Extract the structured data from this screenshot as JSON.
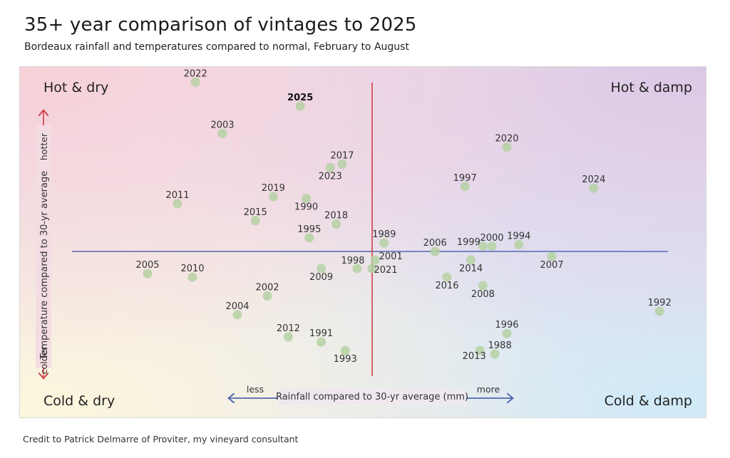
{
  "title": "35+ year comparison of vintages to 2025",
  "subtitle": "Bordeaux rainfall and temperatures compared to normal, February to August",
  "credit": "Credit to Patrick Delmarre of Proviter, my vineyard consultant",
  "chart_data": {
    "type": "scatter",
    "title": "35+ year comparison of vintages to 2025",
    "xlabel": "Rainfall compared to 30-yr average (mm)",
    "ylabel": "Temperature compared to 30-yr average",
    "x_arrow_labels": {
      "low": "less",
      "high": "more"
    },
    "y_arrow_labels": {
      "high": "hotter",
      "low": "colder"
    },
    "quadrants": {
      "top_left": "Hot & dry",
      "top_right": "Hot & damp",
      "bottom_left": "Cold & dry",
      "bottom_right": "Cold & damp"
    },
    "xlim": [
      -100,
      100
    ],
    "ylim": [
      -100,
      100
    ],
    "scale_note_units": "relative (no ticks printed)",
    "grid": false,
    "colors": {
      "point": "#b5d1a3",
      "x_axis_line": "#5068b0",
      "y_axis_line": "#d04048",
      "hotter_arrow": "#d04048",
      "rainfall_arrow": "#5068b0"
    },
    "highlight": "2025",
    "points": [
      {
        "label": "2022",
        "x": -59,
        "y": 99
      },
      {
        "label": "2025",
        "x": -24,
        "y": 85
      },
      {
        "label": "2003",
        "x": -50,
        "y": 69
      },
      {
        "label": "2017",
        "x": -10,
        "y": 51
      },
      {
        "label": "2023",
        "x": -14,
        "y": 49
      },
      {
        "label": "2019",
        "x": -33,
        "y": 32
      },
      {
        "label": "1990",
        "x": -22,
        "y": 31
      },
      {
        "label": "2011",
        "x": -65,
        "y": 28
      },
      {
        "label": "2015",
        "x": -39,
        "y": 18
      },
      {
        "label": "2018",
        "x": -12,
        "y": 16
      },
      {
        "label": "1995",
        "x": -21,
        "y": 8
      },
      {
        "label": "1989",
        "x": 4,
        "y": 5
      },
      {
        "label": "2005",
        "x": -75,
        "y": -13
      },
      {
        "label": "2010",
        "x": -60,
        "y": -15
      },
      {
        "label": "2009",
        "x": -17,
        "y": -10
      },
      {
        "label": "1998",
        "x": -5,
        "y": -10
      },
      {
        "label": "2001",
        "x": 1,
        "y": -5
      },
      {
        "label": "2021",
        "x": 0,
        "y": -10
      },
      {
        "label": "2002",
        "x": -35,
        "y": -26
      },
      {
        "label": "2004",
        "x": -45,
        "y": -37
      },
      {
        "label": "2012",
        "x": -28,
        "y": -50
      },
      {
        "label": "1991",
        "x": -17,
        "y": -53
      },
      {
        "label": "1993",
        "x": -9,
        "y": -58
      },
      {
        "label": "2020",
        "x": 45,
        "y": 61
      },
      {
        "label": "1997",
        "x": 31,
        "y": 38
      },
      {
        "label": "2024",
        "x": 74,
        "y": 37
      },
      {
        "label": "2006",
        "x": 21,
        "y": 0
      },
      {
        "label": "1999",
        "x": 37,
        "y": 3
      },
      {
        "label": "2000",
        "x": 40,
        "y": 3
      },
      {
        "label": "1994",
        "x": 49,
        "y": 4
      },
      {
        "label": "2007",
        "x": 60,
        "y": -3
      },
      {
        "label": "2014",
        "x": 33,
        "y": -5
      },
      {
        "label": "2016",
        "x": 25,
        "y": -15
      },
      {
        "label": "2008",
        "x": 37,
        "y": -20
      },
      {
        "label": "1992",
        "x": 96,
        "y": -35
      },
      {
        "label": "1996",
        "x": 45,
        "y": -48
      },
      {
        "label": "2013",
        "x": 36,
        "y": -58
      },
      {
        "label": "1988",
        "x": 41,
        "y": -60
      }
    ]
  }
}
